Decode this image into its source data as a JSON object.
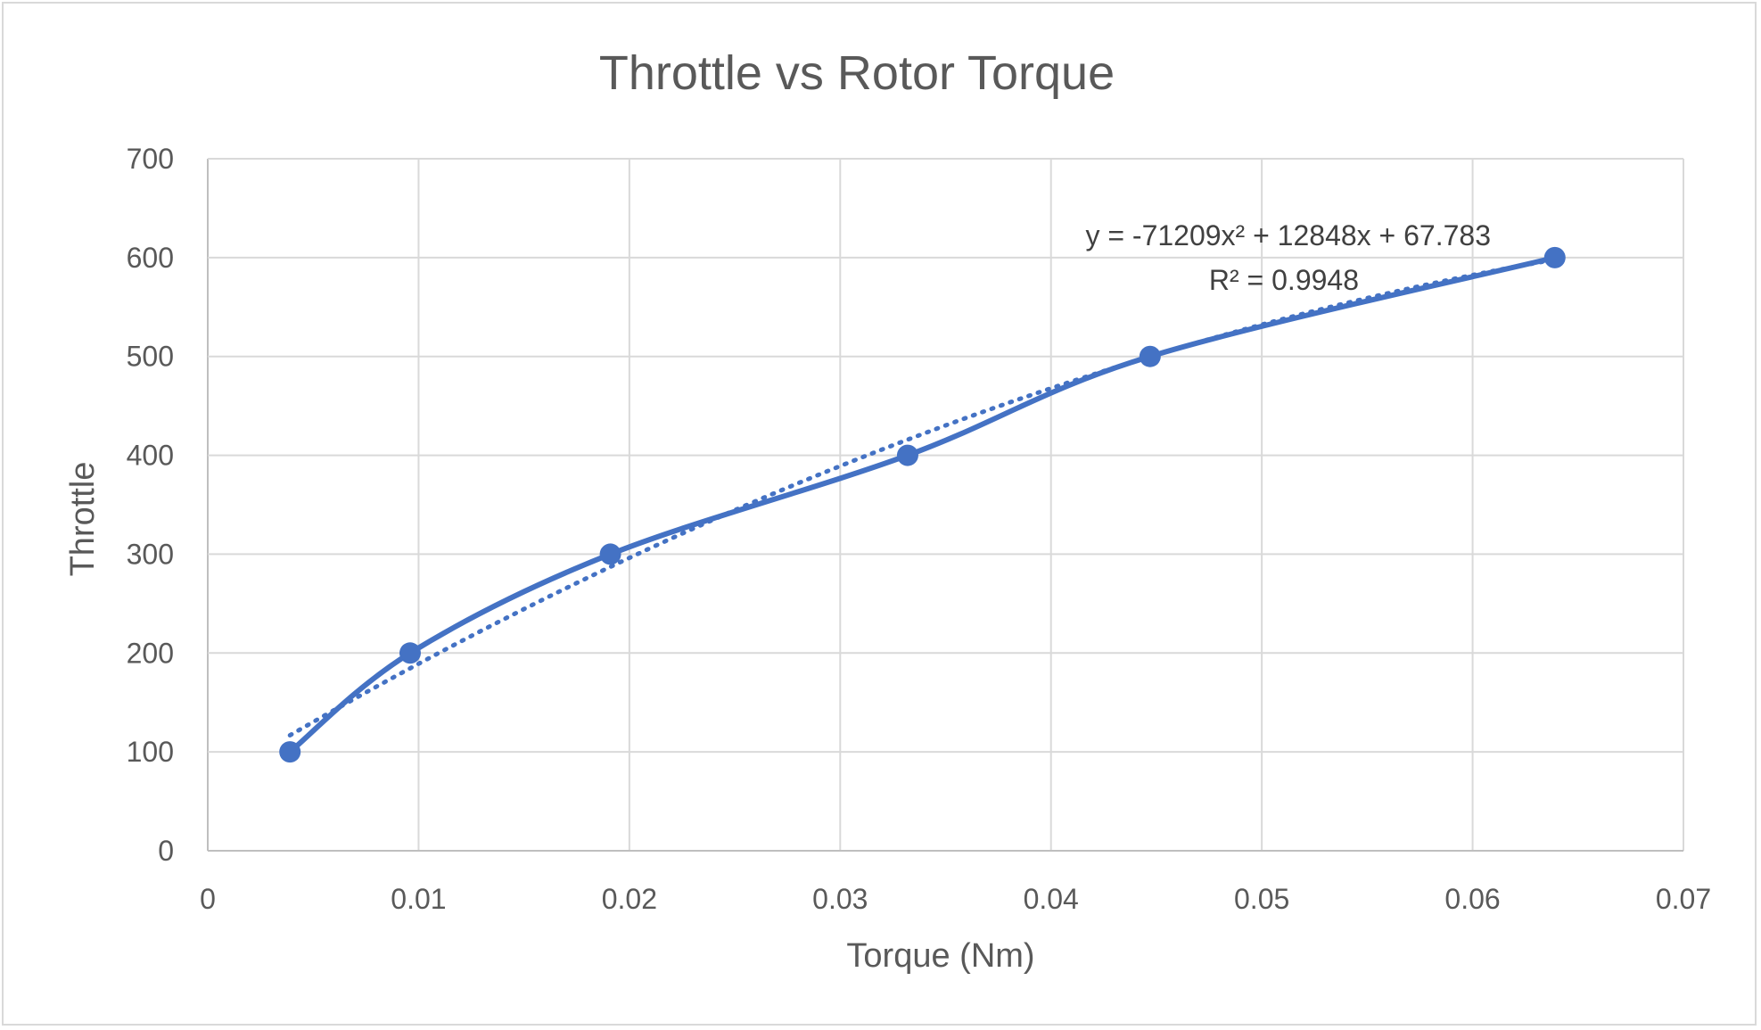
{
  "chart_data": {
    "type": "scatter",
    "title": "Throttle vs Rotor Torque",
    "xlabel": "Torque (Nm)",
    "ylabel": "Throttle",
    "xlim": [
      0,
      0.07
    ],
    "ylim": [
      0,
      700
    ],
    "x_ticks": [
      "0",
      "0.01",
      "0.02",
      "0.03",
      "0.04",
      "0.05",
      "0.06",
      "0.07"
    ],
    "y_ticks": [
      "0",
      "100",
      "200",
      "300",
      "400",
      "500",
      "600",
      "700"
    ],
    "grid": true,
    "legend": "none",
    "series": [
      {
        "style": "smooth-line-with-markers",
        "color": "#4472C4",
        "x": [
          0.0039,
          0.0096,
          0.0191,
          0.0332,
          0.0447,
          0.0639
        ],
        "y": [
          100,
          200,
          300,
          400,
          500,
          600
        ]
      }
    ],
    "trendline": {
      "type": "polynomial-order-2",
      "style": "dotted",
      "color": "#4472C4",
      "coefficients": [
        -71209,
        12848,
        67.783
      ],
      "equation_label": "y = -71209x² + 12848x + 67.783",
      "r2_label": "R² = 0.9948"
    }
  }
}
